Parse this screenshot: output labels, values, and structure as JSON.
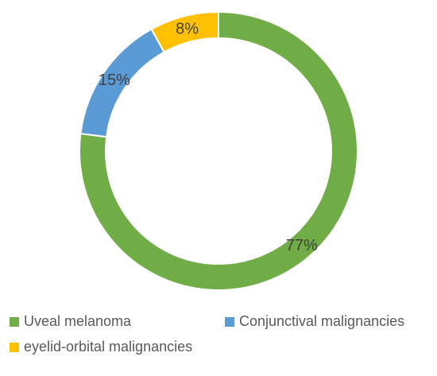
{
  "chart_data": {
    "type": "pie",
    "subtype": "donut",
    "title": "",
    "categories": [
      "Uveal melanoma",
      "Conjunctival malignancies",
      "eyelid-orbital malignancies"
    ],
    "values": [
      77,
      15,
      8
    ],
    "labels": [
      "77%",
      "15%",
      "8%"
    ],
    "colors": [
      "#70ad47",
      "#5b9bd5",
      "#ffc000"
    ],
    "legend_position": "bottom",
    "series": [
      {
        "values": [
          77,
          15,
          8
        ]
      }
    ]
  }
}
